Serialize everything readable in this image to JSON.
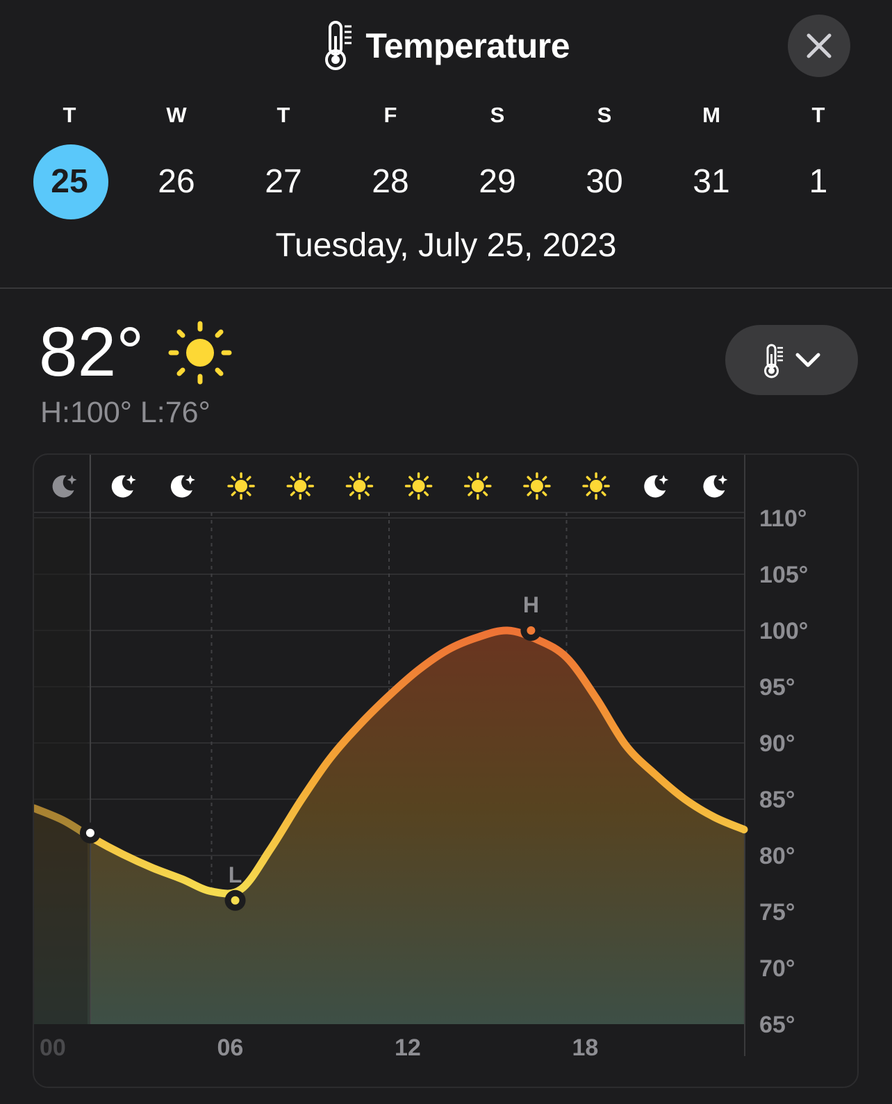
{
  "header": {
    "title": "Temperature",
    "title_icon": "thermometer-icon",
    "close_icon": "close-icon"
  },
  "days": [
    {
      "dow": "T",
      "num": "25",
      "selected": true
    },
    {
      "dow": "W",
      "num": "26"
    },
    {
      "dow": "T",
      "num": "27"
    },
    {
      "dow": "F",
      "num": "28"
    },
    {
      "dow": "S",
      "num": "29"
    },
    {
      "dow": "S",
      "num": "30"
    },
    {
      "dow": "M",
      "num": "31"
    },
    {
      "dow": "T",
      "num": "1"
    }
  ],
  "selected_date": "Tuesday, July 25, 2023",
  "current": {
    "temp": "82°",
    "condition_icon": "sun-icon",
    "hilo": "H:100° L:76°"
  },
  "metric_selector": {
    "icon": "thermometer-icon",
    "chevron": "chevron-down-icon"
  },
  "colors": {
    "background": "#1c1c1e",
    "selected_day": "#5ac8fa",
    "sun": "#fdd835",
    "curve_low": "#f5d547",
    "curve_high": "#f07a35",
    "axis_text": "#8e8e93"
  },
  "chart_data": {
    "type": "area",
    "x": [
      0,
      1,
      2,
      3,
      4,
      5,
      6,
      7,
      8,
      9,
      10,
      11,
      12,
      13,
      14,
      15,
      16,
      17,
      18,
      19,
      20,
      21,
      22,
      23,
      24
    ],
    "values": [
      84.2,
      83.1,
      81.5,
      80.1,
      78.9,
      77.9,
      76.8,
      77.0,
      80.6,
      84.8,
      88.6,
      91.6,
      94.2,
      96.5,
      98.3,
      99.4,
      100.0,
      99.2,
      97.6,
      94.0,
      89.8,
      87.2,
      85.0,
      83.4,
      82.3
    ],
    "xlim": [
      0,
      24
    ],
    "x_ticks": [
      {
        "x": 0,
        "label": "00"
      },
      {
        "x": 6,
        "label": "06"
      },
      {
        "x": 12,
        "label": "12"
      },
      {
        "x": 18,
        "label": "18"
      }
    ],
    "ylim": [
      65,
      110
    ],
    "y_ticks": [
      {
        "v": 110,
        "label": "110°"
      },
      {
        "v": 105,
        "label": "105°"
      },
      {
        "v": 100,
        "label": "100°"
      },
      {
        "v": 95,
        "label": "95°"
      },
      {
        "v": 90,
        "label": "90°"
      },
      {
        "v": 85,
        "label": "85°"
      },
      {
        "v": 80,
        "label": "80°"
      },
      {
        "v": 75,
        "label": "75°"
      },
      {
        "v": 70,
        "label": "70°"
      },
      {
        "v": 65,
        "label": "65°"
      }
    ],
    "current_marker": {
      "x": 1.9,
      "value": 82
    },
    "low_marker": {
      "x": 6.8,
      "value": 76,
      "label": "L"
    },
    "high_marker": {
      "x": 16.8,
      "value": 100,
      "label": "H"
    },
    "hourly_icons": [
      "moon",
      "moon",
      "moon",
      "sun",
      "sun",
      "sun",
      "sun",
      "sun",
      "sun",
      "sun",
      "moon",
      "moon"
    ],
    "grid": true
  }
}
